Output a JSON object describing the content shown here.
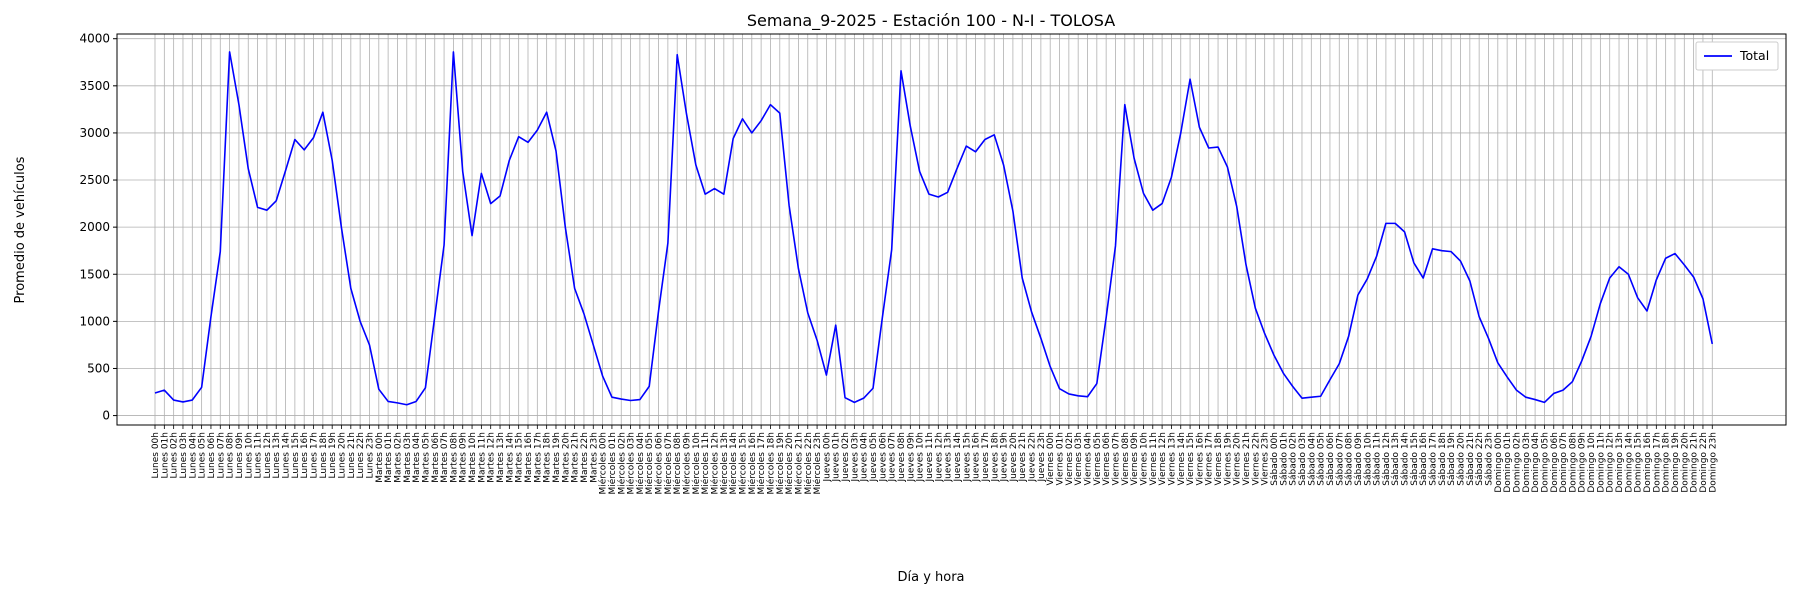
{
  "chart_data": {
    "type": "line",
    "title": "Semana_9-2025 - Estación 100 - N-I  - TOLOSA",
    "xlabel": "Día y hora",
    "ylabel": "Promedio de vehículos",
    "days": [
      "Lunes",
      "Martes",
      "Miércoles",
      "Jueves",
      "Viernes",
      "Sábado",
      "Domingo"
    ],
    "hours_per_day": 24,
    "hour_suffix": "h",
    "yticks": [
      0,
      500,
      1000,
      1500,
      2000,
      2500,
      3000,
      3500,
      4000
    ],
    "ylim": [
      -100,
      4050
    ],
    "grid": true,
    "legend_position": "top-right",
    "series": [
      {
        "name": "Total",
        "color": "#0000ff",
        "values": [
          240,
          270,
          165,
          145,
          165,
          300,
          1050,
          1740,
          3860,
          3300,
          2620,
          2210,
          2180,
          2280,
          2600,
          2930,
          2820,
          2950,
          3220,
          2710,
          1990,
          1350,
          1000,
          750,
          280,
          150,
          135,
          115,
          150,
          295,
          1050,
          1810,
          3860,
          2590,
          1910,
          2570,
          2250,
          2330,
          2710,
          2960,
          2900,
          3030,
          3220,
          2810,
          2000,
          1350,
          1080,
          750,
          420,
          195,
          175,
          160,
          170,
          310,
          1110,
          1830,
          3830,
          3200,
          2660,
          2350,
          2410,
          2350,
          2940,
          3150,
          3000,
          3130,
          3300,
          3210,
          2230,
          1560,
          1090,
          800,
          430,
          960,
          190,
          140,
          185,
          290,
          1040,
          1760,
          3660,
          3070,
          2590,
          2350,
          2320,
          2370,
          2620,
          2860,
          2800,
          2930,
          2980,
          2660,
          2170,
          1460,
          1100,
          820,
          520,
          285,
          230,
          210,
          200,
          340,
          1040,
          1800,
          3300,
          2730,
          2360,
          2180,
          2250,
          2530,
          3000,
          3570,
          3060,
          2840,
          2850,
          2640,
          2220,
          1600,
          1140,
          870,
          640,
          450,
          310,
          185,
          195,
          205,
          380,
          550,
          840,
          1280,
          1450,
          1690,
          2040,
          2040,
          1950,
          1620,
          1460,
          1770,
          1750,
          1740,
          1640,
          1430,
          1050,
          820,
          560,
          410,
          270,
          195,
          170,
          140,
          235,
          270,
          360,
          580,
          840,
          1190,
          1460,
          1580,
          1500,
          1250,
          1110,
          1440,
          1670,
          1720,
          1600,
          1470,
          1240,
          760
        ]
      }
    ]
  }
}
